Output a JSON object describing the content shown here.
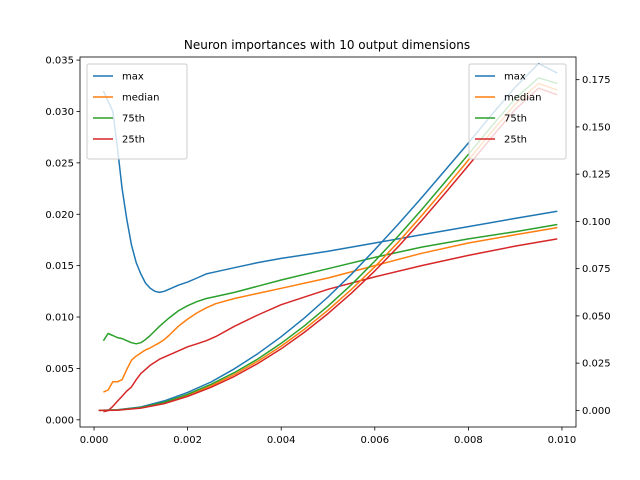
{
  "chart_data": {
    "type": "line",
    "title": "Neuron importances with 10 output dimensions",
    "xlabel": "",
    "ylabel_left": "",
    "ylabel_right": "",
    "xlim": [
      -0.0003,
      0.0103
    ],
    "xticks": [
      0.0,
      0.002,
      0.004,
      0.006,
      0.008,
      0.01
    ],
    "xtick_labels": [
      "0.000",
      "0.002",
      "0.004",
      "0.006",
      "0.008",
      "0.010"
    ],
    "ylim_left": [
      -0.0007,
      0.0353
    ],
    "yticks_left": [
      0.0,
      0.005,
      0.01,
      0.015,
      0.02,
      0.025,
      0.03,
      0.035
    ],
    "ytick_labels_left": [
      "0.000",
      "0.005",
      "0.010",
      "0.015",
      "0.020",
      "0.025",
      "0.030",
      "0.035"
    ],
    "ylim_right": [
      -0.0088,
      0.187
    ],
    "yticks_right": [
      0.0,
      0.025,
      0.05,
      0.075,
      0.1,
      0.125,
      0.15,
      0.175
    ],
    "ytick_labels_right": [
      "0.000",
      "0.025",
      "0.050",
      "0.075",
      "0.100",
      "0.125",
      "0.150",
      "0.175"
    ],
    "grid": false,
    "legends": [
      {
        "axis": "left",
        "placement": "top-left",
        "entries": [
          "max",
          "median",
          "75th",
          "25th"
        ]
      },
      {
        "axis": "right",
        "placement": "top-right",
        "entries": [
          "max",
          "median",
          "75th",
          "25th"
        ]
      }
    ],
    "series": [
      {
        "name": "max",
        "axis": "left",
        "color": "#1f77b4",
        "points": [
          [
            0.0002,
            0.032
          ],
          [
            0.0004,
            0.03
          ],
          [
            0.0005,
            0.0265
          ],
          [
            0.0006,
            0.0225
          ],
          [
            0.0007,
            0.0195
          ],
          [
            0.0008,
            0.017
          ],
          [
            0.0009,
            0.0153
          ],
          [
            0.001,
            0.0142
          ],
          [
            0.0011,
            0.0133
          ],
          [
            0.0012,
            0.0128
          ],
          [
            0.0013,
            0.0125
          ],
          [
            0.0014,
            0.0124
          ],
          [
            0.0015,
            0.0125
          ],
          [
            0.0016,
            0.0127
          ],
          [
            0.0018,
            0.0131
          ],
          [
            0.002,
            0.0134
          ],
          [
            0.0022,
            0.0138
          ],
          [
            0.0024,
            0.0142
          ],
          [
            0.0026,
            0.0144
          ],
          [
            0.003,
            0.0148
          ],
          [
            0.0035,
            0.0153
          ],
          [
            0.004,
            0.0157
          ],
          [
            0.005,
            0.0164
          ],
          [
            0.006,
            0.0172
          ],
          [
            0.007,
            0.018
          ],
          [
            0.008,
            0.0188
          ],
          [
            0.009,
            0.0196
          ],
          [
            0.0099,
            0.0203
          ]
        ]
      },
      {
        "name": "median",
        "axis": "left",
        "color": "#ff7f0e",
        "points": [
          [
            0.0002,
            0.0027
          ],
          [
            0.0003,
            0.0029
          ],
          [
            0.0004,
            0.0037
          ],
          [
            0.0005,
            0.0037
          ],
          [
            0.0006,
            0.0039
          ],
          [
            0.0007,
            0.0049
          ],
          [
            0.0008,
            0.0058
          ],
          [
            0.0009,
            0.0062
          ],
          [
            0.001,
            0.0065
          ],
          [
            0.0011,
            0.0068
          ],
          [
            0.0012,
            0.007
          ],
          [
            0.0014,
            0.0075
          ],
          [
            0.0015,
            0.0078
          ],
          [
            0.0016,
            0.0082
          ],
          [
            0.0018,
            0.0091
          ],
          [
            0.002,
            0.0098
          ],
          [
            0.0022,
            0.0104
          ],
          [
            0.0024,
            0.0109
          ],
          [
            0.0026,
            0.0113
          ],
          [
            0.003,
            0.0118
          ],
          [
            0.0035,
            0.0123
          ],
          [
            0.004,
            0.0128
          ],
          [
            0.005,
            0.0138
          ],
          [
            0.006,
            0.015
          ],
          [
            0.007,
            0.0162
          ],
          [
            0.008,
            0.0172
          ],
          [
            0.009,
            0.018
          ],
          [
            0.0099,
            0.0187
          ]
        ]
      },
      {
        "name": "75th",
        "axis": "left",
        "color": "#2ca02c",
        "points": [
          [
            0.0002,
            0.0077
          ],
          [
            0.0003,
            0.0084
          ],
          [
            0.0004,
            0.0082
          ],
          [
            0.0005,
            0.008
          ],
          [
            0.0006,
            0.0079
          ],
          [
            0.0007,
            0.0077
          ],
          [
            0.0008,
            0.0075
          ],
          [
            0.0009,
            0.0074
          ],
          [
            0.001,
            0.0075
          ],
          [
            0.0011,
            0.0078
          ],
          [
            0.0012,
            0.0082
          ],
          [
            0.0014,
            0.0091
          ],
          [
            0.0016,
            0.0099
          ],
          [
            0.0018,
            0.0106
          ],
          [
            0.002,
            0.0111
          ],
          [
            0.0022,
            0.0115
          ],
          [
            0.0024,
            0.0118
          ],
          [
            0.0026,
            0.012
          ],
          [
            0.003,
            0.0124
          ],
          [
            0.0035,
            0.013
          ],
          [
            0.004,
            0.0136
          ],
          [
            0.005,
            0.0147
          ],
          [
            0.006,
            0.0158
          ],
          [
            0.007,
            0.0168
          ],
          [
            0.008,
            0.0176
          ],
          [
            0.009,
            0.0183
          ],
          [
            0.0099,
            0.019
          ]
        ]
      },
      {
        "name": "25th",
        "axis": "left",
        "color": "#d62728",
        "points": [
          [
            0.0002,
            0.0008
          ],
          [
            0.0003,
            0.0009
          ],
          [
            0.0004,
            0.0013
          ],
          [
            0.0005,
            0.0018
          ],
          [
            0.0006,
            0.0023
          ],
          [
            0.0007,
            0.0028
          ],
          [
            0.0008,
            0.0032
          ],
          [
            0.0009,
            0.0039
          ],
          [
            0.001,
            0.0045
          ],
          [
            0.0011,
            0.0049
          ],
          [
            0.0012,
            0.0053
          ],
          [
            0.0014,
            0.0059
          ],
          [
            0.0016,
            0.0063
          ],
          [
            0.0018,
            0.0067
          ],
          [
            0.002,
            0.0071
          ],
          [
            0.0022,
            0.0074
          ],
          [
            0.0024,
            0.0077
          ],
          [
            0.0026,
            0.0081
          ],
          [
            0.003,
            0.0091
          ],
          [
            0.0035,
            0.0102
          ],
          [
            0.004,
            0.0112
          ],
          [
            0.005,
            0.0127
          ],
          [
            0.006,
            0.0139
          ],
          [
            0.007,
            0.015
          ],
          [
            0.008,
            0.016
          ],
          [
            0.009,
            0.0169
          ],
          [
            0.0099,
            0.0176
          ]
        ]
      },
      {
        "name": "max",
        "axis": "right",
        "color": "#1f77b4",
        "points": [
          [
            0.0001,
            0.0
          ],
          [
            0.0005,
            0.0003
          ],
          [
            0.001,
            0.0018
          ],
          [
            0.0015,
            0.005
          ],
          [
            0.002,
            0.0095
          ],
          [
            0.0025,
            0.015
          ],
          [
            0.003,
            0.022
          ],
          [
            0.0035,
            0.03
          ],
          [
            0.004,
            0.039
          ],
          [
            0.0045,
            0.049
          ],
          [
            0.005,
            0.06
          ],
          [
            0.0055,
            0.072
          ],
          [
            0.006,
            0.085
          ],
          [
            0.0065,
            0.0985
          ],
          [
            0.007,
            0.1125
          ],
          [
            0.0075,
            0.127
          ],
          [
            0.008,
            0.1415
          ],
          [
            0.0085,
            0.1565
          ],
          [
            0.009,
            0.171
          ],
          [
            0.0095,
            0.1835
          ],
          [
            0.0099,
            0.1785
          ]
        ]
      },
      {
        "name": "median",
        "axis": "right",
        "color": "#ff7f0e",
        "points": [
          [
            0.0001,
            0.0
          ],
          [
            0.0005,
            0.0002
          ],
          [
            0.001,
            0.0014
          ],
          [
            0.0015,
            0.004
          ],
          [
            0.002,
            0.008
          ],
          [
            0.0025,
            0.013
          ],
          [
            0.003,
            0.019
          ],
          [
            0.0035,
            0.026
          ],
          [
            0.004,
            0.034
          ],
          [
            0.0045,
            0.043
          ],
          [
            0.005,
            0.053
          ],
          [
            0.0055,
            0.064
          ],
          [
            0.006,
            0.076
          ],
          [
            0.0065,
            0.089
          ],
          [
            0.007,
            0.103
          ],
          [
            0.0075,
            0.1175
          ],
          [
            0.008,
            0.1325
          ],
          [
            0.0085,
            0.1475
          ],
          [
            0.009,
            0.162
          ],
          [
            0.0095,
            0.173
          ],
          [
            0.0099,
            0.1695
          ]
        ]
      },
      {
        "name": "75th",
        "axis": "right",
        "color": "#2ca02c",
        "points": [
          [
            0.0001,
            0.0
          ],
          [
            0.0005,
            0.0002
          ],
          [
            0.001,
            0.0015
          ],
          [
            0.0015,
            0.0043
          ],
          [
            0.002,
            0.0085
          ],
          [
            0.0025,
            0.0138
          ],
          [
            0.003,
            0.02
          ],
          [
            0.0035,
            0.0272
          ],
          [
            0.004,
            0.0355
          ],
          [
            0.0045,
            0.0448
          ],
          [
            0.005,
            0.0552
          ],
          [
            0.0055,
            0.0665
          ],
          [
            0.006,
            0.079
          ],
          [
            0.0065,
            0.0922
          ],
          [
            0.007,
            0.1062
          ],
          [
            0.0075,
            0.1208
          ],
          [
            0.008,
            0.1355
          ],
          [
            0.0085,
            0.1505
          ],
          [
            0.009,
            0.165
          ],
          [
            0.0095,
            0.176
          ],
          [
            0.0099,
            0.173
          ]
        ]
      },
      {
        "name": "25th",
        "axis": "right",
        "color": "#d62728",
        "points": [
          [
            0.0001,
            0.0
          ],
          [
            0.0005,
            0.0001
          ],
          [
            0.001,
            0.0012
          ],
          [
            0.0015,
            0.0036
          ],
          [
            0.002,
            0.0074
          ],
          [
            0.0025,
            0.0122
          ],
          [
            0.003,
            0.018
          ],
          [
            0.0035,
            0.0248
          ],
          [
            0.004,
            0.0326
          ],
          [
            0.0045,
            0.0414
          ],
          [
            0.005,
            0.0512
          ],
          [
            0.0055,
            0.062
          ],
          [
            0.006,
            0.0738
          ],
          [
            0.0065,
            0.0866
          ],
          [
            0.007,
            0.1004
          ],
          [
            0.0075,
            0.1148
          ],
          [
            0.008,
            0.1296
          ],
          [
            0.0085,
            0.1446
          ],
          [
            0.009,
            0.1592
          ],
          [
            0.0095,
            0.1705
          ],
          [
            0.0099,
            0.167
          ]
        ]
      }
    ]
  }
}
